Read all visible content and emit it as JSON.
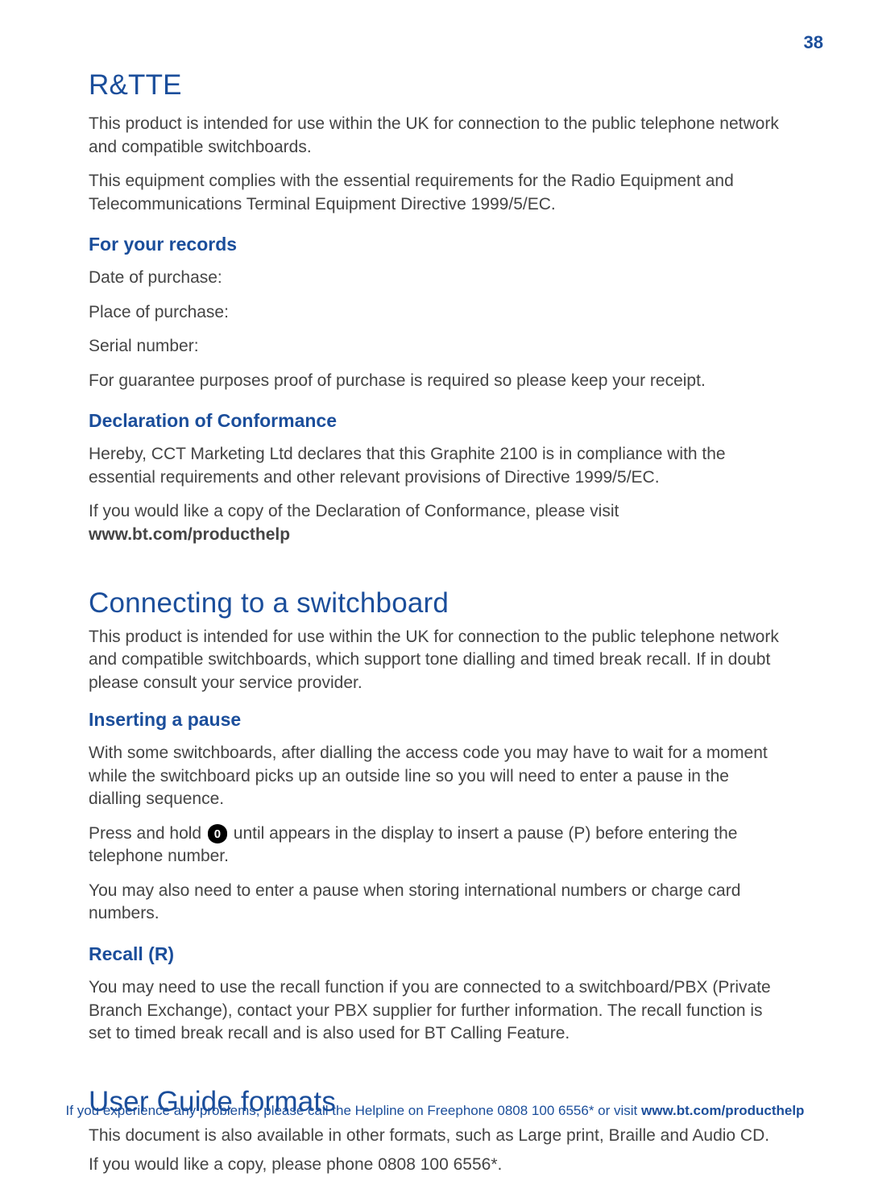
{
  "page_number": "38",
  "colors": {
    "heading": "#1b4e9b",
    "body_text": "#444444",
    "background": "#ffffff",
    "key_icon_bg": "#000000",
    "key_icon_text": "#ffffff"
  },
  "typography": {
    "body_font": "Segoe UI, Helvetica Neue, Arial, sans-serif",
    "h1_size_pt": 26,
    "h2_size_pt": 17,
    "body_size_pt": 16,
    "footer_size_pt": 13
  },
  "sections": {
    "rtte": {
      "title": "R&TTE",
      "para1": "This product is intended for use within the UK for connection to the public telephone network and compatible switchboards.",
      "para2": "This equipment complies with the essential requirements for the Radio Equipment and Telecommunications Terminal Equipment Directive 1999/5/EC.",
      "records_heading": "For your records",
      "record_date": "Date of purchase:",
      "record_place": "Place of purchase:",
      "record_serial": "Serial number:",
      "record_note": "For guarantee purposes proof of purchase is required so please keep your receipt.",
      "decl_heading": "Declaration of Conformance",
      "decl_para1": "Hereby, CCT Marketing Ltd declares that this Graphite 2100 is in compliance with the essential requirements and other relevant provisions of Directive 1999/5/EC.",
      "decl_para2_pre": "If you would like a copy of the Declaration of Conformance, please visit ",
      "decl_para2_link": "www.bt.com/producthelp"
    },
    "switchboard": {
      "title": "Connecting to a switchboard",
      "intro": "This product is intended for use within the UK for connection to the public telephone network and compatible switchboards, which support tone dialling and timed break recall. If in doubt please consult your service provider.",
      "pause_heading": "Inserting a pause",
      "pause_para1": "With some switchboards, after dialling the access code you may have to wait for a moment while the switchboard picks up an outside line so you will need to enter a pause in the dialling sequence.",
      "pause_para2_pre": "Press and hold ",
      "pause_key_label": "0",
      "pause_para2_post": " until  appears in the display to insert a pause (P) before entering the telephone number.",
      "pause_para3": "You may also need to enter a pause when storing international numbers or charge card numbers.",
      "recall_heading": "Recall (R)",
      "recall_para": "You may need to use the recall function if you are connected to a switchboard/PBX (Private Branch Exchange), contact your PBX supplier for further information. The recall function is set to timed break recall and is also used for BT Calling Feature."
    },
    "formats": {
      "title": "User Guide formats",
      "line1": "This document is also available in other formats, such as Large print, Braille and Audio CD.",
      "line2": "If you would like a copy, please phone 0808 100 6556*."
    }
  },
  "footer": {
    "text_pre": "If you experience any problems, please call the Helpline on Freephone 0808 100 6556* or visit ",
    "link": "www.bt.com/producthelp"
  }
}
